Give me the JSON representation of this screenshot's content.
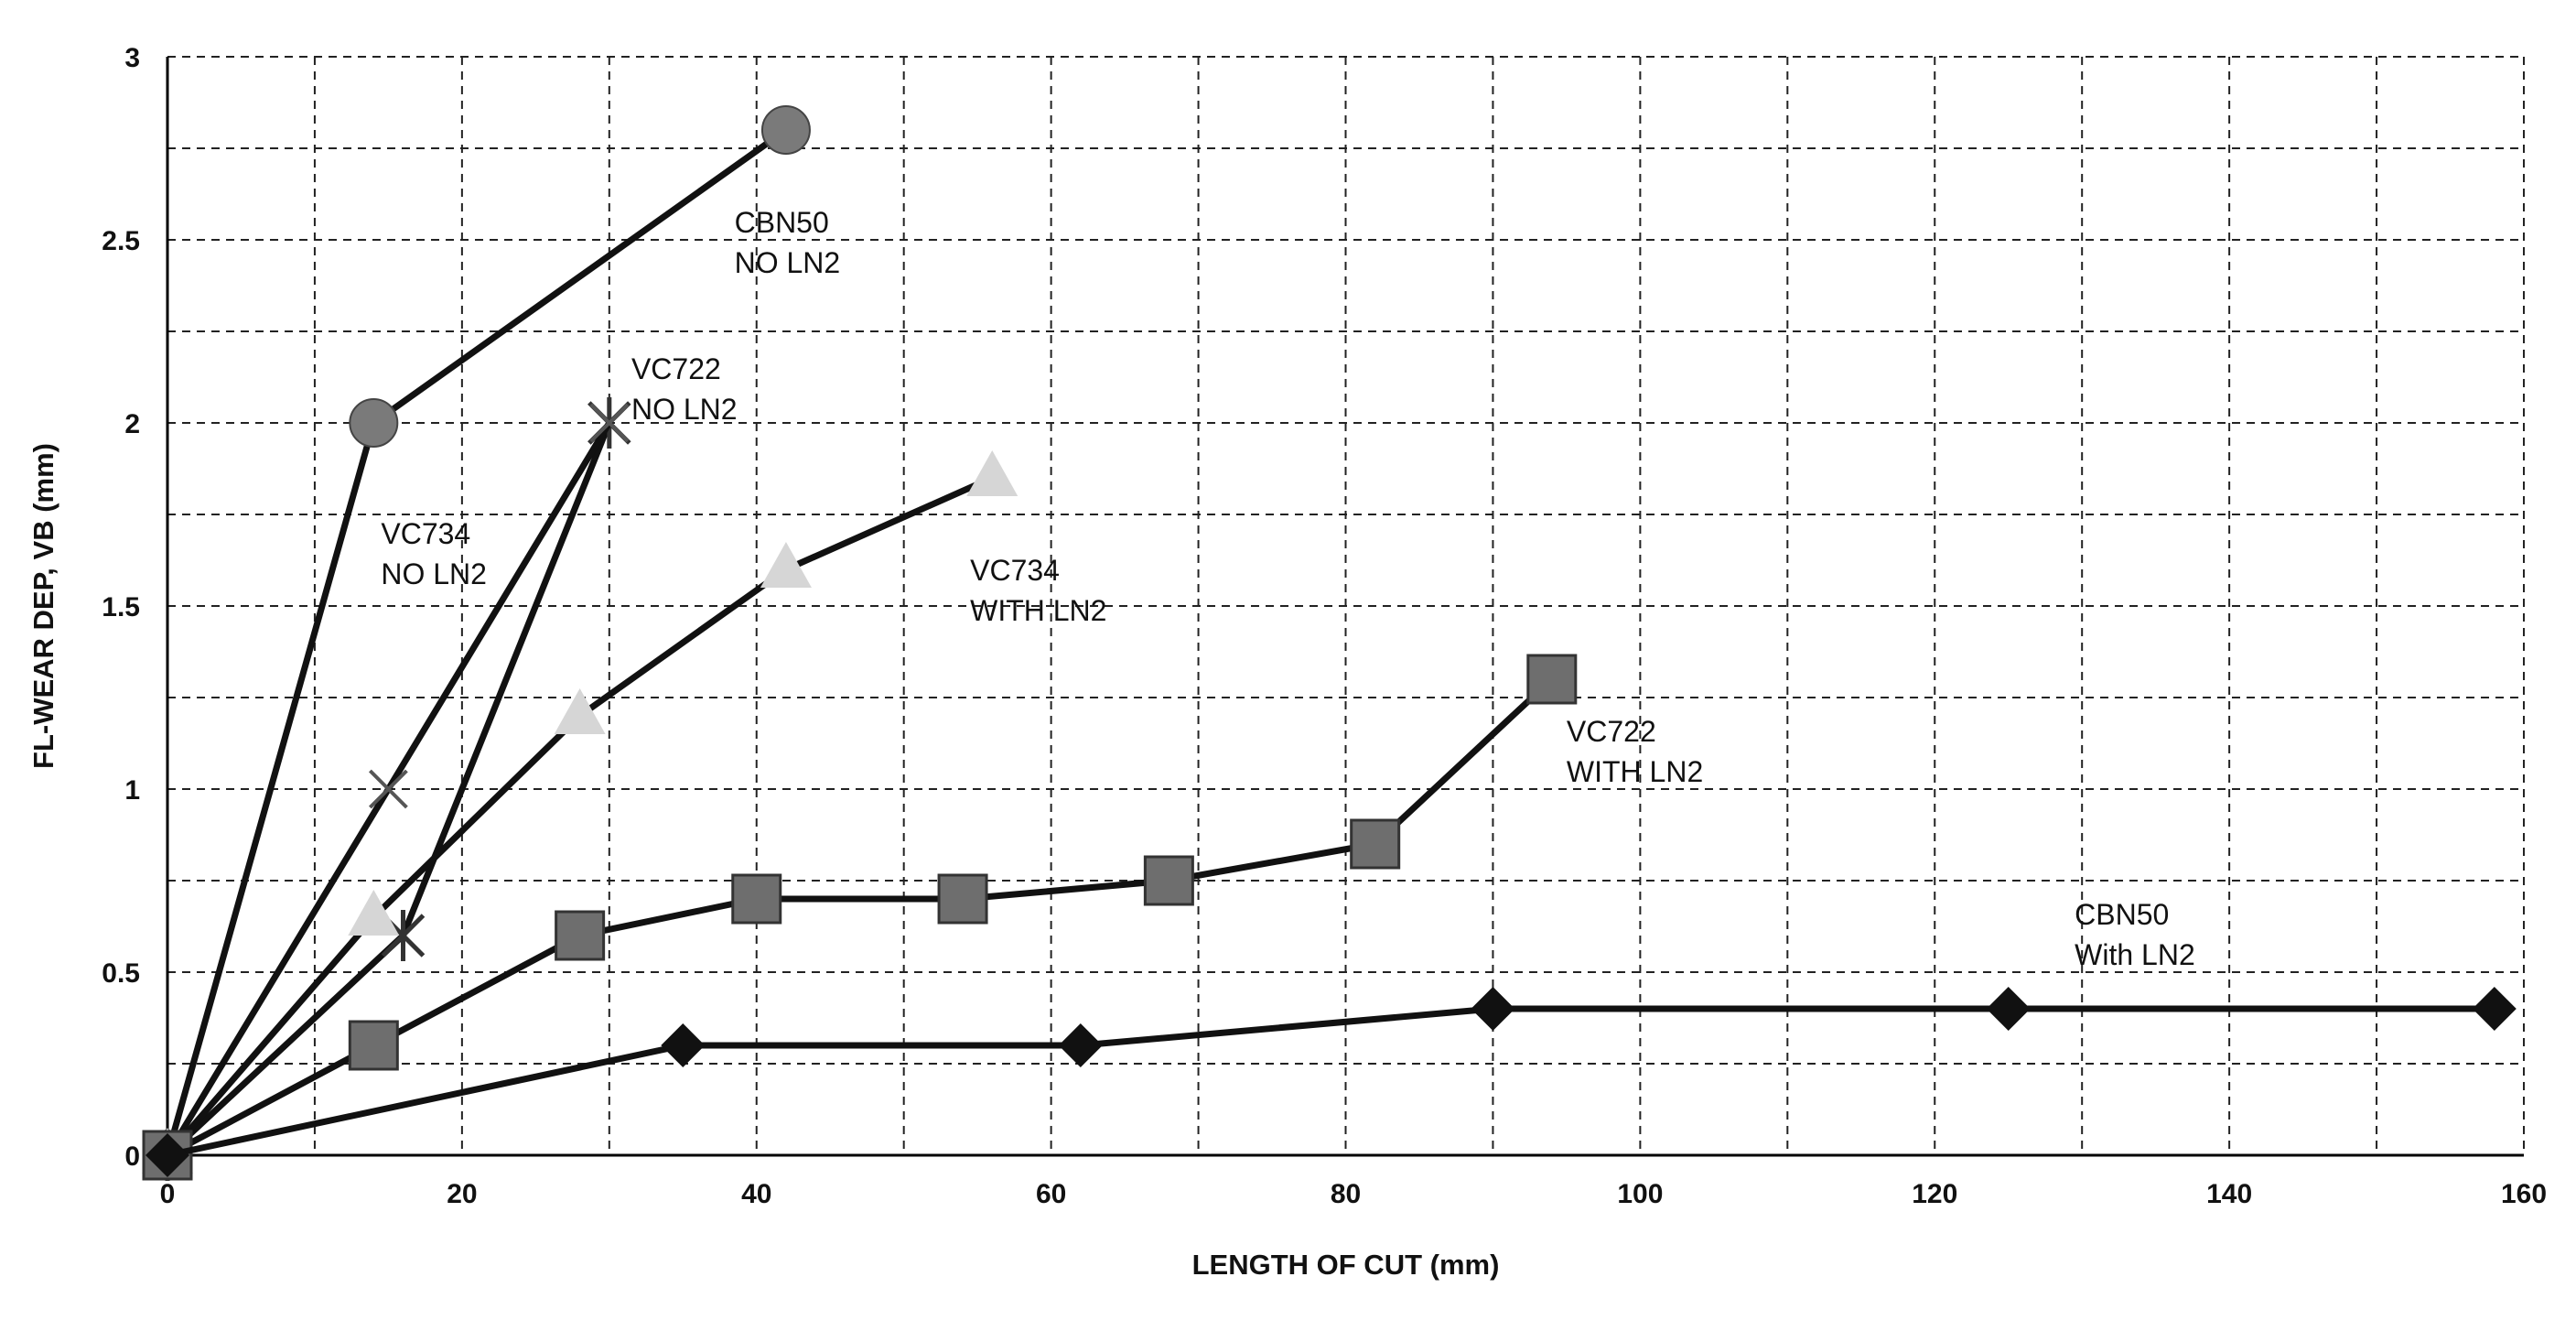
{
  "chart_data": {
    "type": "line",
    "title": "",
    "xlabel": "LENGTH OF CUT (mm)",
    "ylabel": "FL-WEAR DEP, VB (mm)",
    "xlim": [
      0,
      160
    ],
    "ylim": [
      0,
      3
    ],
    "x_ticks": [
      "0",
      "20",
      "40",
      "60",
      "80",
      "100",
      "120",
      "140",
      "160"
    ],
    "y_ticks": [
      "0",
      "0.5",
      "1",
      "1.5",
      "2",
      "2.5",
      "3"
    ],
    "grid": true,
    "legend": "none (series labelled by inline annotations)",
    "series": [
      {
        "name": "CBN50 NO LN2",
        "marker": "circle",
        "color": "#7a7a7a",
        "points": [
          [
            0,
            0
          ],
          [
            14,
            2.0
          ],
          [
            42,
            2.8
          ]
        ]
      },
      {
        "name": "VC722 NO LN2",
        "marker": "star",
        "color": "#333333",
        "points": [
          [
            0,
            0
          ],
          [
            16,
            0.6
          ],
          [
            30,
            2.0
          ]
        ]
      },
      {
        "name": "VC734 NO LN2",
        "marker": "x",
        "color": "#555555",
        "points": [
          [
            0,
            0
          ],
          [
            15,
            1.0
          ],
          [
            30,
            2.0
          ]
        ]
      },
      {
        "name": "VC734 WITH LN2",
        "marker": "triangle",
        "color": "#d6d6d6",
        "points": [
          [
            0,
            0
          ],
          [
            14,
            0.65
          ],
          [
            28,
            1.2
          ],
          [
            42,
            1.6
          ],
          [
            56,
            1.85
          ]
        ]
      },
      {
        "name": "VC722 WITH LN2",
        "marker": "square",
        "color": "#6e6e6e",
        "points": [
          [
            0,
            0
          ],
          [
            14,
            0.3
          ],
          [
            28,
            0.6
          ],
          [
            40,
            0.7
          ],
          [
            54,
            0.7
          ],
          [
            68,
            0.75
          ],
          [
            82,
            0.85
          ],
          [
            94,
            1.3
          ]
        ]
      },
      {
        "name": "CBN50 With LN2",
        "marker": "diamond",
        "color": "#111111",
        "points": [
          [
            0,
            0
          ],
          [
            35,
            0.3
          ],
          [
            62,
            0.3
          ],
          [
            90,
            0.4
          ],
          [
            125,
            0.4
          ],
          [
            158,
            0.4
          ]
        ]
      }
    ],
    "annotations": [
      {
        "lines": [
          "CBN50",
          "NO LN2"
        ],
        "x": 38.5,
        "y": 2.52
      },
      {
        "lines": [
          "VC722",
          "NO LN2"
        ],
        "x": 31.5,
        "y": 2.12
      },
      {
        "lines": [
          "VC734",
          "NO LN2"
        ],
        "x": 14.5,
        "y": 1.67
      },
      {
        "lines": [
          "VC734",
          "WITH LN2"
        ],
        "x": 54.5,
        "y": 1.57
      },
      {
        "lines": [
          "VC722",
          "WITH LN2"
        ],
        "x": 95,
        "y": 1.13
      },
      {
        "lines": [
          "CBN50",
          "With LN2"
        ],
        "x": 129.5,
        "y": 0.63
      }
    ]
  }
}
